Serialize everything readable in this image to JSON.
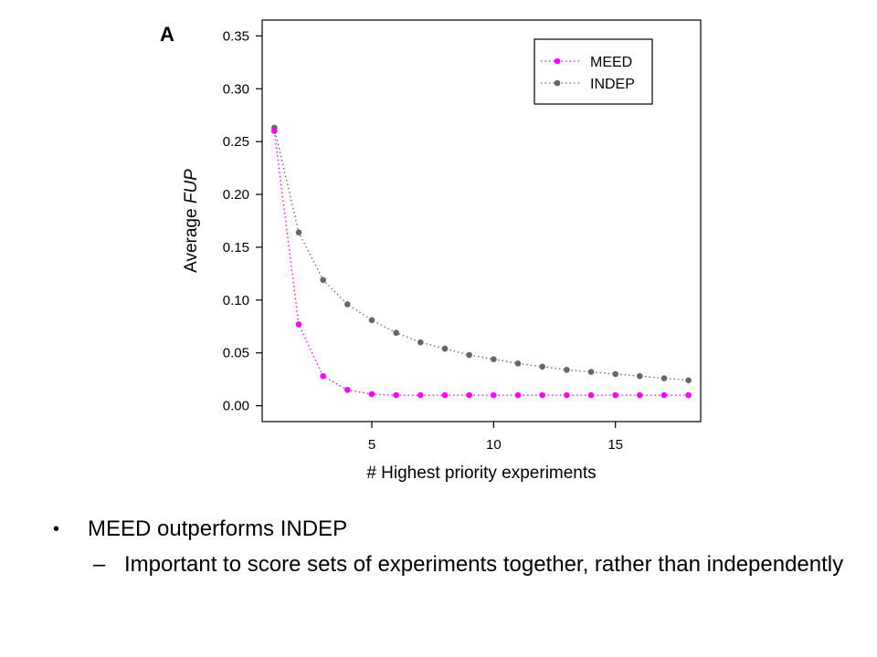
{
  "chart_data": {
    "type": "line",
    "panel_label": "A",
    "title": "",
    "xlabel": "# Highest priority experiments",
    "ylabel_prefix": "Average ",
    "ylabel_italic": "FUP",
    "xlim": [
      0.5,
      18.5
    ],
    "ylim": [
      -0.015,
      0.365
    ],
    "xticks": [
      5,
      10,
      15
    ],
    "yticks": [
      0.0,
      0.05,
      0.1,
      0.15,
      0.2,
      0.25,
      0.3,
      0.35
    ],
    "ytick_labels": [
      "0.00",
      "0.05",
      "0.10",
      "0.15",
      "0.20",
      "0.25",
      "0.30",
      "0.35"
    ],
    "legend_position": "top-right",
    "grid": false,
    "x": [
      1,
      2,
      3,
      4,
      5,
      6,
      7,
      8,
      9,
      10,
      11,
      12,
      13,
      14,
      15,
      16,
      17,
      18
    ],
    "series": [
      {
        "name": "MEED",
        "color": "#ff00ff",
        "values": [
          0.26,
          0.077,
          0.028,
          0.015,
          0.011,
          0.01,
          0.01,
          0.01,
          0.01,
          0.01,
          0.01,
          0.01,
          0.01,
          0.01,
          0.01,
          0.01,
          0.01,
          0.01
        ]
      },
      {
        "name": "INDEP",
        "color": "#666666",
        "values": [
          0.263,
          0.164,
          0.119,
          0.096,
          0.081,
          0.069,
          0.06,
          0.054,
          0.048,
          0.044,
          0.04,
          0.037,
          0.034,
          0.032,
          0.03,
          0.028,
          0.026,
          0.024
        ]
      }
    ]
  },
  "bullets": {
    "main": "MEED outperforms INDEP",
    "sub": "Important to score sets of experiments together, rather than independently"
  }
}
